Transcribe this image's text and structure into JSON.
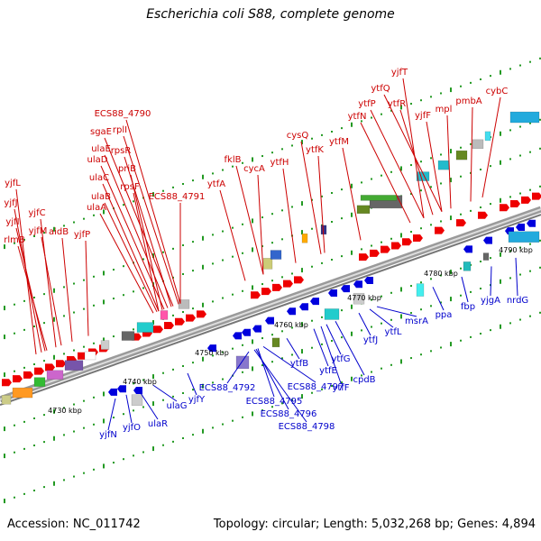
{
  "title": "Escherichia coli S88, complete genome",
  "footer": {
    "accession": "Accession: NC_011742",
    "stats": "Topology: circular; Length: 5,032,268 bp; Genes: 4,894"
  },
  "colors": {
    "forward_label": "#cc0000",
    "reverse_label": "#0000cc",
    "forward_gene": "#ee0000",
    "reverse_gene": "#0000dd",
    "backbone": "#888888",
    "tick": "#229922"
  },
  "scale_labels": [
    "4730 kbp",
    "4740 kbp",
    "4750 kbp",
    "4760 kbp",
    "4770 kbp",
    "4780 kbp",
    "4790 kbp"
  ],
  "forward_labels": [
    "yjfT",
    "ytfQ",
    "ytfR",
    "ytfP",
    "ytfN",
    "yjfF",
    "mpl",
    "pmbA",
    "cybC",
    "ECS88_4790",
    "rplI",
    "sgaE",
    "rpsR",
    "ulaE",
    "ulaD",
    "priB",
    "ulaC",
    "rpsF",
    "ulaB",
    "ECS88_4791",
    "ulaA",
    "fklB",
    "cysQ",
    "ytfK",
    "ytfM",
    "ytfH",
    "cycA",
    "ytfA",
    "yjfL",
    "yjfJ",
    "yjfC",
    "yjfI",
    "yjfM",
    "aidB",
    "yjfP",
    "rlmB"
  ],
  "reverse_labels": [
    "ppa",
    "msrA",
    "fbp",
    "yjgA",
    "nrdG",
    "ytfL",
    "ytfJ",
    "cpdB",
    "ytfG",
    "ytfF",
    "ytfE",
    "ytfB",
    "ECS88_4792",
    "ECS88_4797",
    "ECS88_4795",
    "ECS88_4796",
    "ECS88_4798",
    "yjfY",
    "ulaG",
    "ulaR",
    "yjfO",
    "yjfN"
  ]
}
